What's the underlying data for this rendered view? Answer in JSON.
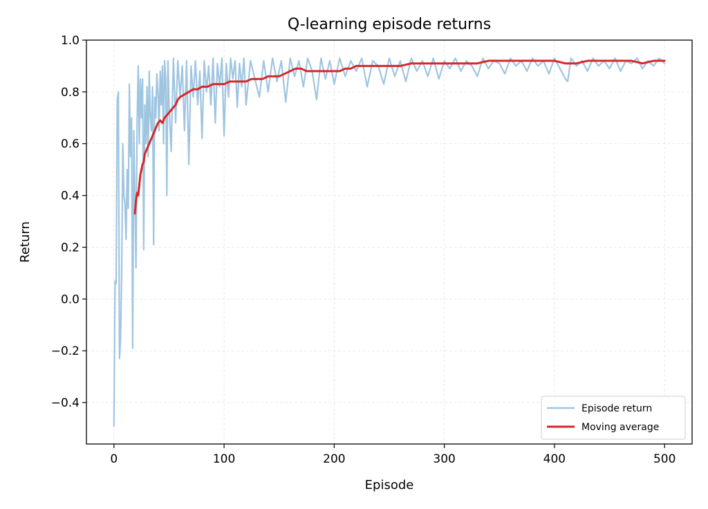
{
  "chart_data": {
    "type": "line",
    "title": "Q-learning episode returns",
    "xlabel": "Episode",
    "ylabel": "Return",
    "xlim": [
      -25,
      525
    ],
    "ylim": [
      -0.56,
      1.0
    ],
    "xticks": [
      0,
      100,
      200,
      300,
      400,
      500
    ],
    "yticks": [
      -0.4,
      -0.2,
      0.0,
      0.2,
      0.4,
      0.6,
      0.8,
      1.0
    ],
    "xtick_labels": [
      "0",
      "100",
      "200",
      "300",
      "400",
      "500"
    ],
    "ytick_labels": [
      "−0.4",
      "−0.2",
      "0.0",
      "0.2",
      "0.4",
      "0.6",
      "0.8",
      "1.0"
    ],
    "grid": true,
    "legend_position": "lower-right",
    "series": [
      {
        "name": "Episode return",
        "color": "#9fc5e0",
        "x": [
          0,
          1,
          2,
          3,
          4,
          5,
          6,
          7,
          8,
          9,
          10,
          11,
          12,
          13,
          14,
          15,
          16,
          17,
          18,
          19,
          20,
          21,
          22,
          23,
          24,
          25,
          26,
          27,
          28,
          29,
          30,
          31,
          32,
          33,
          34,
          35,
          36,
          37,
          38,
          39,
          40,
          41,
          42,
          43,
          44,
          45,
          46,
          47,
          48,
          49,
          50,
          52,
          54,
          56,
          58,
          60,
          62,
          64,
          66,
          68,
          70,
          72,
          74,
          76,
          78,
          80,
          82,
          84,
          86,
          88,
          90,
          92,
          94,
          96,
          98,
          100,
          102,
          104,
          106,
          108,
          110,
          112,
          114,
          116,
          118,
          120,
          124,
          128,
          132,
          136,
          140,
          144,
          148,
          152,
          156,
          160,
          164,
          168,
          172,
          176,
          180,
          184,
          188,
          192,
          196,
          200,
          205,
          210,
          215,
          220,
          225,
          230,
          235,
          240,
          245,
          250,
          255,
          260,
          265,
          270,
          275,
          280,
          285,
          290,
          295,
          300,
          305,
          310,
          315,
          320,
          325,
          330,
          335,
          340,
          345,
          350,
          355,
          360,
          365,
          370,
          375,
          380,
          385,
          390,
          395,
          400,
          405,
          410,
          412,
          415,
          420,
          425,
          430,
          435,
          440,
          445,
          450,
          455,
          460,
          465,
          470,
          475,
          480,
          485,
          490,
          495,
          500
        ],
        "values": [
          -0.49,
          0.07,
          0.06,
          0.77,
          0.8,
          -0.23,
          -0.15,
          0.1,
          0.6,
          0.4,
          0.37,
          0.23,
          0.5,
          0.35,
          0.83,
          0.55,
          0.7,
          -0.19,
          0.65,
          0.4,
          0.12,
          0.68,
          0.9,
          0.6,
          0.85,
          0.7,
          0.85,
          0.19,
          0.75,
          0.6,
          0.82,
          0.55,
          0.88,
          0.7,
          0.65,
          0.82,
          0.21,
          0.78,
          0.7,
          0.87,
          0.8,
          0.65,
          0.88,
          0.75,
          0.9,
          0.6,
          0.92,
          0.85,
          0.4,
          0.92,
          0.75,
          0.57,
          0.93,
          0.68,
          0.92,
          0.78,
          0.9,
          0.65,
          0.92,
          0.52,
          0.9,
          0.78,
          0.92,
          0.75,
          0.88,
          0.62,
          0.92,
          0.8,
          0.9,
          0.75,
          0.93,
          0.68,
          0.91,
          0.82,
          0.93,
          0.63,
          0.91,
          0.78,
          0.93,
          0.85,
          0.92,
          0.74,
          0.91,
          0.82,
          0.93,
          0.75,
          0.92,
          0.85,
          0.78,
          0.92,
          0.8,
          0.93,
          0.84,
          0.92,
          0.76,
          0.93,
          0.86,
          0.92,
          0.82,
          0.93,
          0.88,
          0.77,
          0.93,
          0.85,
          0.92,
          0.83,
          0.93,
          0.86,
          0.92,
          0.88,
          0.93,
          0.82,
          0.92,
          0.9,
          0.83,
          0.93,
          0.86,
          0.92,
          0.84,
          0.93,
          0.88,
          0.92,
          0.86,
          0.93,
          0.85,
          0.92,
          0.89,
          0.93,
          0.88,
          0.92,
          0.9,
          0.86,
          0.93,
          0.89,
          0.92,
          0.91,
          0.87,
          0.93,
          0.9,
          0.92,
          0.88,
          0.93,
          0.9,
          0.92,
          0.87,
          0.93,
          0.89,
          0.85,
          0.84,
          0.93,
          0.9,
          0.92,
          0.88,
          0.93,
          0.9,
          0.92,
          0.89,
          0.93,
          0.88,
          0.92,
          0.91,
          0.93,
          0.89,
          0.92,
          0.9,
          0.93,
          0.91
        ]
      },
      {
        "name": "Moving average",
        "color": "#d62728",
        "x": [
          19,
          20,
          21,
          22,
          23,
          24,
          25,
          26,
          27,
          28,
          30,
          32,
          34,
          36,
          38,
          40,
          42,
          44,
          46,
          48,
          50,
          52,
          54,
          56,
          58,
          60,
          64,
          68,
          72,
          76,
          80,
          85,
          90,
          95,
          100,
          105,
          110,
          115,
          120,
          125,
          130,
          135,
          140,
          145,
          150,
          155,
          160,
          165,
          170,
          175,
          180,
          185,
          190,
          195,
          200,
          205,
          210,
          215,
          220,
          225,
          230,
          235,
          240,
          250,
          260,
          270,
          280,
          290,
          300,
          310,
          320,
          330,
          340,
          350,
          360,
          370,
          380,
          390,
          400,
          410,
          420,
          430,
          440,
          450,
          460,
          470,
          480,
          490,
          500
        ],
        "values": [
          0.33,
          0.38,
          0.41,
          0.4,
          0.44,
          0.48,
          0.5,
          0.52,
          0.53,
          0.56,
          0.58,
          0.6,
          0.62,
          0.64,
          0.66,
          0.68,
          0.69,
          0.68,
          0.7,
          0.71,
          0.72,
          0.73,
          0.74,
          0.75,
          0.77,
          0.78,
          0.79,
          0.8,
          0.81,
          0.81,
          0.82,
          0.82,
          0.83,
          0.83,
          0.83,
          0.84,
          0.84,
          0.84,
          0.84,
          0.85,
          0.85,
          0.85,
          0.86,
          0.86,
          0.86,
          0.87,
          0.88,
          0.89,
          0.89,
          0.88,
          0.88,
          0.88,
          0.88,
          0.88,
          0.88,
          0.88,
          0.89,
          0.89,
          0.9,
          0.9,
          0.9,
          0.9,
          0.9,
          0.9,
          0.9,
          0.91,
          0.91,
          0.91,
          0.91,
          0.91,
          0.91,
          0.91,
          0.92,
          0.92,
          0.92,
          0.92,
          0.92,
          0.92,
          0.92,
          0.91,
          0.91,
          0.92,
          0.92,
          0.92,
          0.92,
          0.92,
          0.91,
          0.92,
          0.92
        ]
      }
    ]
  }
}
